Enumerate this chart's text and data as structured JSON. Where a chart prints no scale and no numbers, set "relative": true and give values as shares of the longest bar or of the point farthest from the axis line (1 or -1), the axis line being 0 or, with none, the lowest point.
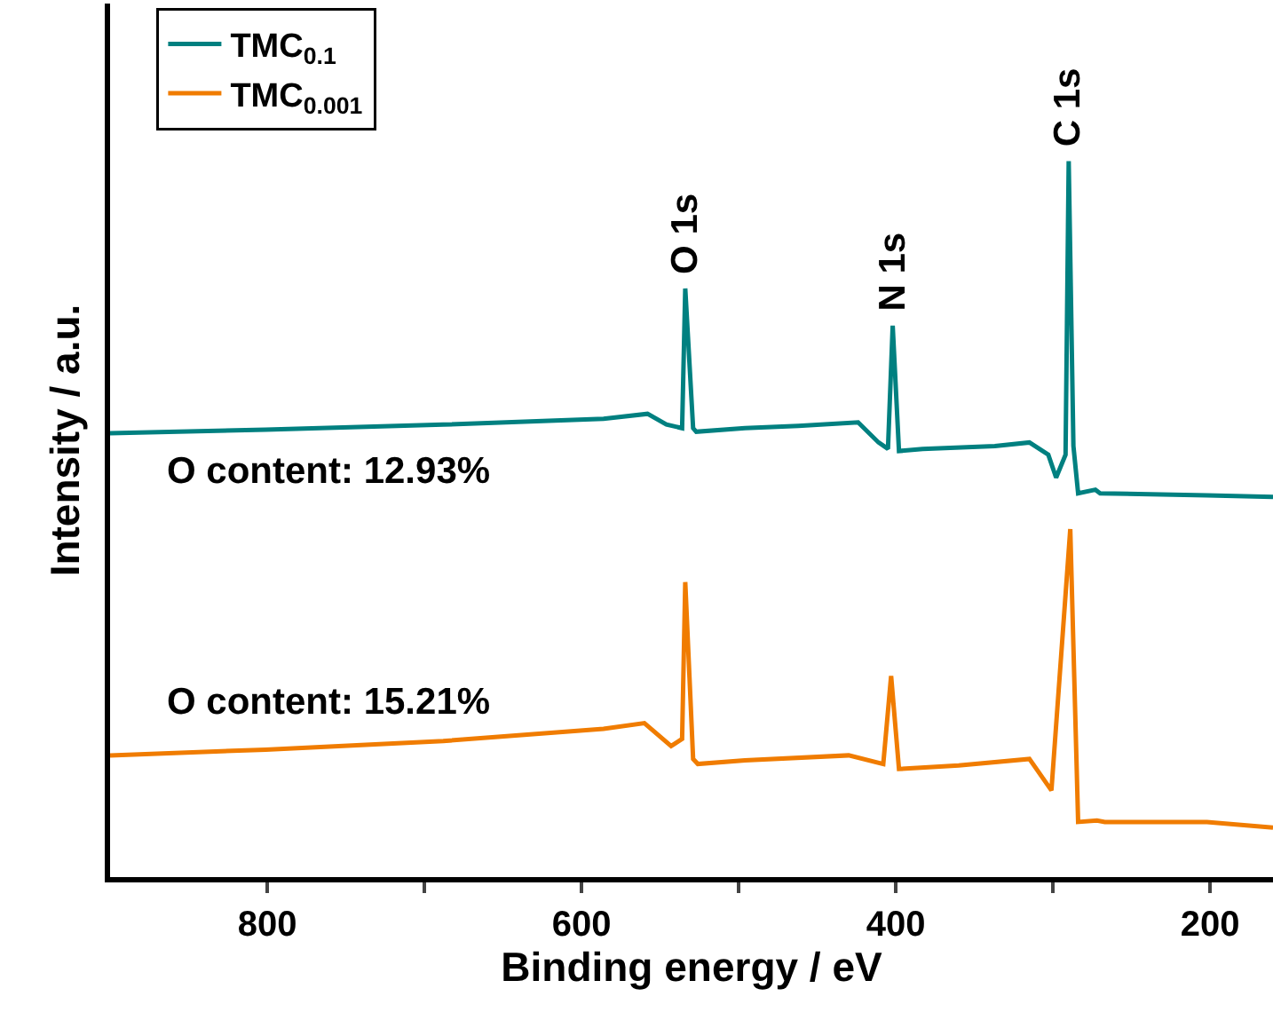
{
  "chart_data": {
    "type": "line",
    "relative": true,
    "xlabel": "Binding energy / eV",
    "ylabel": "Intensity / a.u.",
    "xlim": [
      900,
      160
    ],
    "xticks": [
      800,
      {
        "value": 700,
        "label": null
      },
      600,
      {
        "value": 500,
        "label": null
      },
      400,
      {
        "value": 300,
        "label": null
      },
      200
    ],
    "legend": "top left",
    "marker": "none",
    "line_style": "solid",
    "series": [
      {
        "name": "TMC$_{0.1}$",
        "color": "#008080",
        "x": [
          900,
          801,
          688,
          586,
          558,
          546,
          536,
          534,
          529,
          527,
          496,
          462,
          424,
          411,
          405,
          402,
          398,
          383,
          337,
          315,
          303,
          298,
          292,
          290,
          287,
          284,
          273,
          270,
          202,
          160
        ],
        "values": [
          0.62,
          0.625,
          0.632,
          0.64,
          0.647,
          0.632,
          0.627,
          0.822,
          0.627,
          0.622,
          0.627,
          0.63,
          0.635,
          0.607,
          0.598,
          0.77,
          0.595,
          0.598,
          0.602,
          0.607,
          0.59,
          0.558,
          0.59,
          1.0,
          0.602,
          0.536,
          0.541,
          0.536,
          0.533,
          0.531
        ]
      },
      {
        "name": "TMC$_{0.001}$",
        "color": "#f07c00",
        "x": [
          900,
          801,
          688,
          586,
          560,
          543,
          536,
          534,
          529,
          526,
          496,
          430,
          408,
          403,
          398,
          360,
          315,
          301,
          289,
          284,
          272,
          267,
          202,
          160
        ],
        "values": [
          0.17,
          0.178,
          0.19,
          0.207,
          0.215,
          0.183,
          0.193,
          0.412,
          0.165,
          0.158,
          0.163,
          0.17,
          0.158,
          0.281,
          0.151,
          0.156,
          0.165,
          0.121,
          0.486,
          0.077,
          0.079,
          0.077,
          0.077,
          0.069
        ]
      }
    ],
    "annotations": [
      {
        "text": "O 1s",
        "x": 534,
        "y": 0.822
      },
      {
        "text": "N 1s",
        "x": 402,
        "y": 0.77
      },
      {
        "text": "C 1s",
        "x": 290,
        "y": 1.0
      },
      "O content: 12.93%",
      "O content: 15.21%"
    ]
  }
}
